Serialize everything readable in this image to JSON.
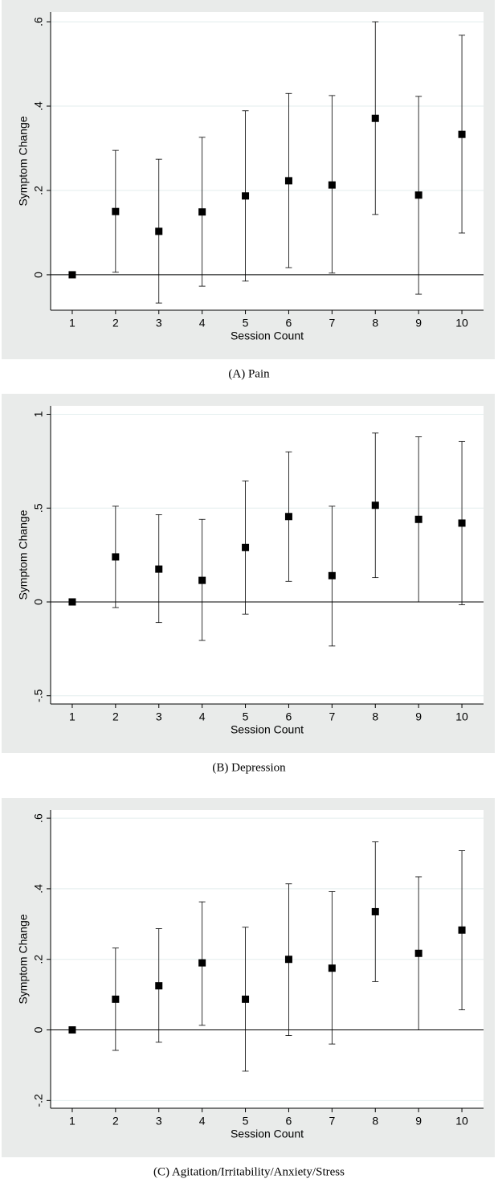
{
  "chart_data": [
    {
      "type": "errorbar",
      "caption": "(A) Pain",
      "xlabel": "Session Count",
      "ylabel": "Symptom Change",
      "x": [
        1,
        2,
        3,
        4,
        5,
        6,
        7,
        8,
        9,
        10
      ],
      "values": [
        0,
        0.15,
        0.103,
        0.149,
        0.187,
        0.223,
        0.213,
        0.371,
        0.189,
        0.333
      ],
      "lower": [
        0,
        0.006,
        -0.067,
        -0.027,
        -0.015,
        0.017,
        0.004,
        0.143,
        -0.046,
        0.099
      ],
      "upper": [
        0,
        0.295,
        0.274,
        0.326,
        0.389,
        0.43,
        0.425,
        0.6,
        0.423,
        0.568
      ],
      "xlim": [
        0.5,
        10.5
      ],
      "xticks": [
        1,
        2,
        3,
        4,
        5,
        6,
        7,
        8,
        9,
        10
      ],
      "ylim": [
        -0.084,
        0.623
      ],
      "yticks": [
        0,
        {
          "value": 0.2,
          "label": ".2"
        },
        {
          "value": 0.4,
          "label": ".4"
        },
        {
          "value": 0.6,
          "label": ".6"
        }
      ],
      "hline": 0,
      "grid": true,
      "color": "#000000"
    },
    {
      "type": "errorbar",
      "caption": "(B) Depression",
      "xlabel": "Session Count",
      "ylabel": "Symptom Change",
      "x": [
        1,
        2,
        3,
        4,
        5,
        6,
        7,
        8,
        9,
        10
      ],
      "values": [
        0,
        0.24,
        0.175,
        0.115,
        0.29,
        0.455,
        0.14,
        0.515,
        0.44,
        0.42
      ],
      "lower": [
        0,
        -0.03,
        -0.11,
        -0.205,
        -0.065,
        0.11,
        -0.235,
        0.13,
        0,
        -0.015
      ],
      "upper": [
        0,
        0.51,
        0.465,
        0.44,
        0.645,
        0.8,
        0.51,
        0.9,
        0.88,
        0.855
      ],
      "xlim": [
        0.5,
        10.5
      ],
      "xticks": [
        1,
        2,
        3,
        4,
        5,
        6,
        7,
        8,
        9,
        10
      ],
      "ylim": [
        -0.544,
        1.045
      ],
      "yticks": [
        {
          "value": -0.5,
          "label": "-.5"
        },
        0,
        {
          "value": 0.5,
          "label": ".5"
        },
        1
      ],
      "hline": 0,
      "grid": true,
      "color": "#000000"
    },
    {
      "type": "errorbar",
      "caption": "(C) Agitation/Irritability/Anxiety/Stress",
      "xlabel": "Session Count",
      "ylabel": "Symptom Change",
      "x": [
        1,
        2,
        3,
        4,
        5,
        6,
        7,
        8,
        9,
        10
      ],
      "values": [
        0,
        0.087,
        0.125,
        0.19,
        0.087,
        0.2,
        0.175,
        0.335,
        0.217,
        0.283
      ],
      "lower": [
        0,
        -0.058,
        -0.035,
        0.013,
        -0.117,
        -0.016,
        -0.04,
        0.137,
        0,
        0.057
      ],
      "upper": [
        0,
        0.232,
        0.287,
        0.363,
        0.291,
        0.414,
        0.392,
        0.533,
        0.434,
        0.508
      ],
      "xlim": [
        0.5,
        10.5
      ],
      "xticks": [
        1,
        2,
        3,
        4,
        5,
        6,
        7,
        8,
        9,
        10
      ],
      "ylim": [
        -0.222,
        0.623
      ],
      "yticks": [
        {
          "value": -0.2,
          "label": "-.2"
        },
        0,
        {
          "value": 0.2,
          "label": ".2"
        },
        {
          "value": 0.4,
          "label": ".4"
        },
        {
          "value": 0.6,
          "label": ".6"
        }
      ],
      "hline": 0,
      "grid": true,
      "color": "#000000"
    }
  ]
}
